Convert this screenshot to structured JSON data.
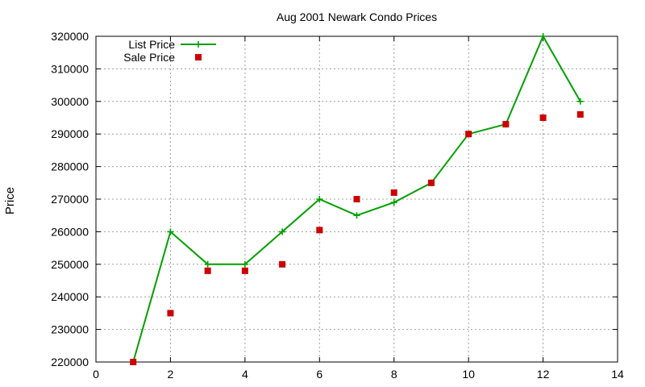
{
  "chart_data": {
    "type": "line",
    "title": "Aug 2001 Newark Condo Prices",
    "xlabel": "",
    "ylabel": "Price",
    "xlim": [
      0,
      14
    ],
    "ylim": [
      220000,
      320000
    ],
    "xticks": [
      0,
      2,
      4,
      6,
      8,
      10,
      12,
      14
    ],
    "yticks": [
      220000,
      230000,
      240000,
      250000,
      260000,
      270000,
      280000,
      290000,
      300000,
      310000,
      320000
    ],
    "grid": true,
    "legend_position": "top-left",
    "series": [
      {
        "name": "List Price",
        "style": "line+cross",
        "color": "#00a000",
        "x": [
          1,
          2,
          3,
          4,
          5,
          6,
          7,
          8,
          9,
          10,
          11,
          12,
          13
        ],
        "y": [
          220000,
          260000,
          250000,
          250000,
          260000,
          270000,
          265000,
          269000,
          275000,
          290000,
          293000,
          320000,
          300000
        ]
      },
      {
        "name": "Sale Price",
        "style": "square-points",
        "color": "#cc0000",
        "x": [
          1,
          2,
          3,
          4,
          5,
          6,
          7,
          8,
          9,
          10,
          11,
          12,
          13
        ],
        "y": [
          220000,
          235000,
          248000,
          248000,
          250000,
          260500,
          270000,
          272000,
          275000,
          290000,
          293000,
          295000,
          296000
        ]
      }
    ]
  }
}
